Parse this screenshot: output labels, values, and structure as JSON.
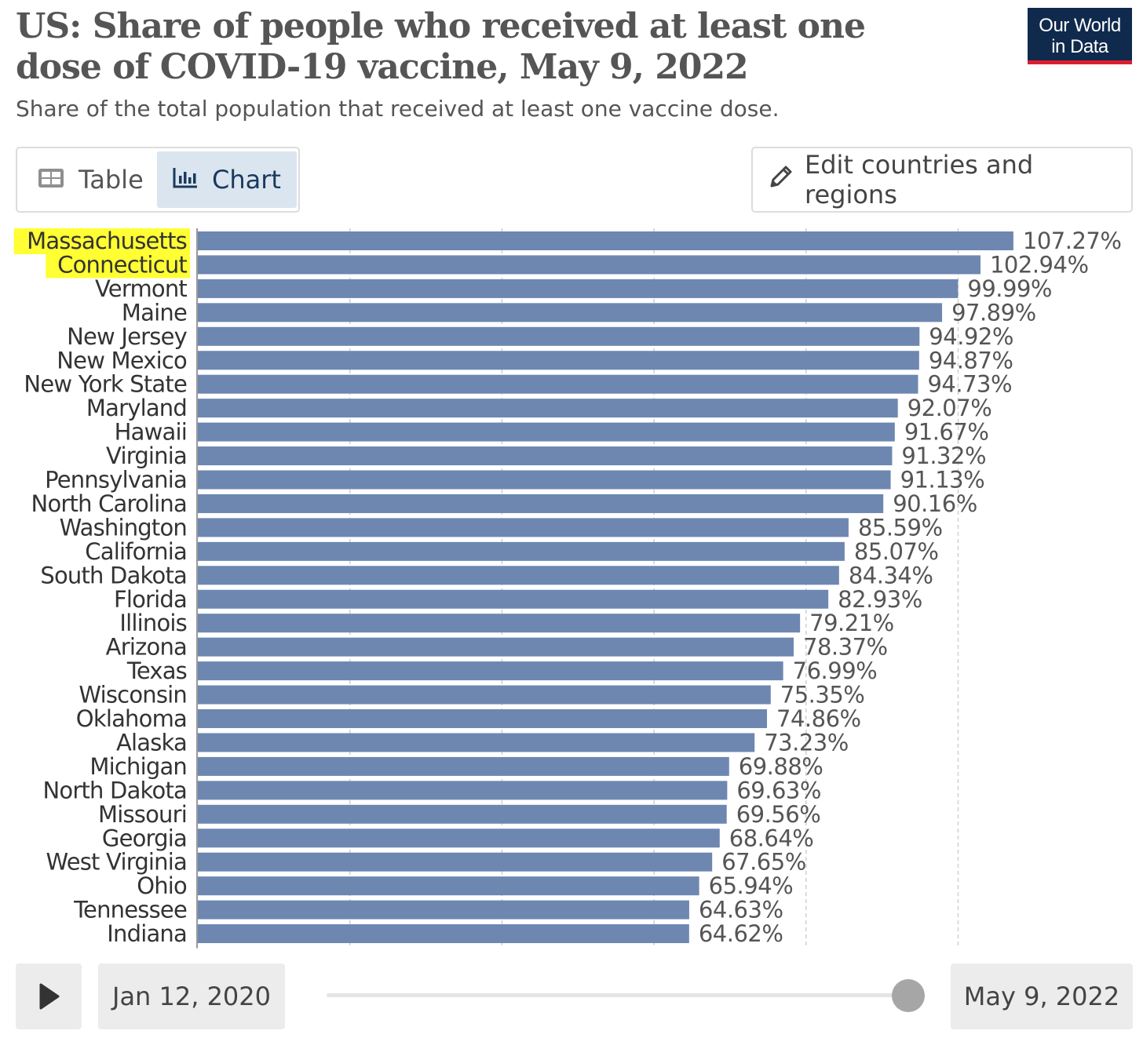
{
  "header": {
    "title": "US: Share of people who received at least one dose of COVID-19 vaccine, May 9, 2022",
    "subtitle": "Share of the total population that received at least one vaccine dose.",
    "logo_line1": "Our World",
    "logo_line2": "in Data"
  },
  "tabs": {
    "table_label": "Table",
    "chart_label": "Chart",
    "active": "Chart"
  },
  "edit_button_label": "Edit countries and regions",
  "timeline": {
    "start_date": "Jan 12, 2020",
    "end_date": "May 9, 2022",
    "position": 1.0
  },
  "colors": {
    "bar": "#6d87b1",
    "highlight": "#ffff33",
    "logo_bg": "#0f2a4c",
    "logo_accent": "#dd1e2f"
  },
  "icons": {
    "table": "table-icon",
    "chart": "bar-chart-icon",
    "edit": "pencil-icon",
    "play": "play-icon"
  },
  "chart_data": {
    "type": "bar",
    "orientation": "horizontal",
    "categories": [
      "Massachusetts",
      "Connecticut",
      "Vermont",
      "Maine",
      "New Jersey",
      "New Mexico",
      "New York State",
      "Maryland",
      "Hawaii",
      "Virginia",
      "Pennsylvania",
      "North Carolina",
      "Washington",
      "California",
      "South Dakota",
      "Florida",
      "Illinois",
      "Arizona",
      "Texas",
      "Wisconsin",
      "Oklahoma",
      "Alaska",
      "Michigan",
      "North Dakota",
      "Missouri",
      "Georgia",
      "West Virginia",
      "Ohio",
      "Tennessee",
      "Indiana"
    ],
    "values": [
      107.27,
      102.94,
      99.99,
      97.89,
      94.92,
      94.87,
      94.73,
      92.07,
      91.67,
      91.32,
      91.13,
      90.16,
      85.59,
      85.07,
      84.34,
      82.93,
      79.21,
      78.37,
      76.99,
      75.35,
      74.86,
      73.23,
      69.88,
      69.63,
      69.56,
      68.64,
      67.65,
      65.94,
      64.63,
      64.62
    ],
    "labels": [
      "107.27%",
      "102.94%",
      "99.99%",
      "97.89%",
      "94.92%",
      "94.87%",
      "94.73%",
      "92.07%",
      "91.67%",
      "91.32%",
      "91.13%",
      "90.16%",
      "85.59%",
      "85.07%",
      "84.34%",
      "82.93%",
      "79.21%",
      "78.37%",
      "76.99%",
      "75.35%",
      "74.86%",
      "73.23%",
      "69.88%",
      "69.63%",
      "69.56%",
      "68.64%",
      "67.65%",
      "65.94%",
      "64.63%",
      "64.62%"
    ],
    "highlighted": [
      "Massachusetts",
      "Connecticut"
    ],
    "xlim": [
      0,
      110
    ],
    "grid": true
  }
}
